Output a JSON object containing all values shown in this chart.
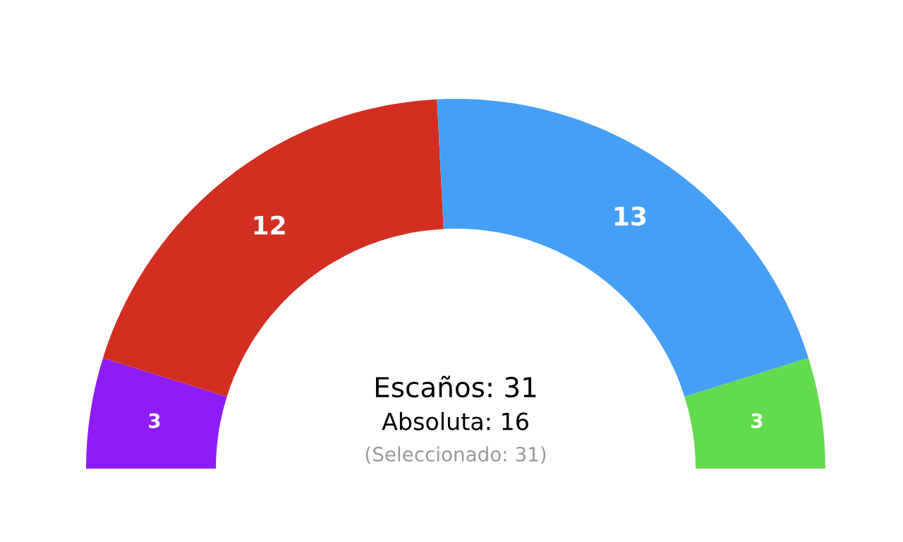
{
  "chart_data": {
    "type": "donut",
    "categories": [
      null,
      null,
      null,
      null
    ],
    "values": [
      3,
      12,
      13,
      3
    ],
    "colors": [
      "#8e1cf5",
      "#d22f22",
      "#469ff7",
      "#63db4f"
    ],
    "data_labels": true,
    "annotations": [
      "Escaños: 31",
      "Absoluta: 16",
      "(Seleccionado: 31)"
    ]
  }
}
